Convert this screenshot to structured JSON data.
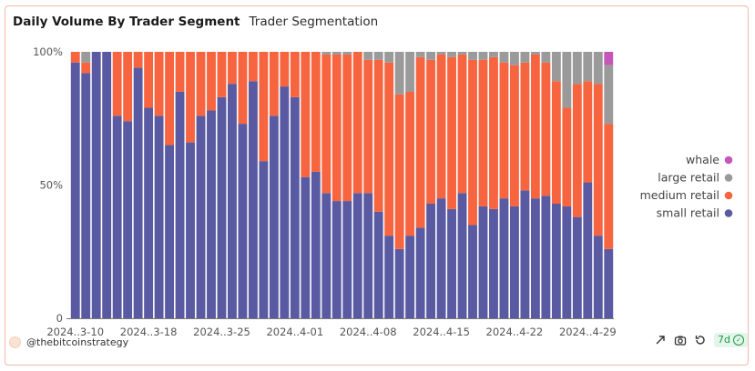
{
  "card": {
    "title": "Daily Volume By Trader Segment",
    "subtitle": "Trader Segmentation",
    "author": "@thebitcoinstrategy",
    "badge": "7d"
  },
  "icons": [
    "share-icon",
    "camera-icon",
    "refresh-icon",
    "check-circle-icon"
  ],
  "chart_data": {
    "type": "bar",
    "stacked": true,
    "normalized": true,
    "x_tick_labels": [
      "2024..3-10",
      "2024..3-18",
      "2024..3-25",
      "2024..4-01",
      "2024..4-08",
      "2024..4-15",
      "2024..4-22",
      "2024..4-29"
    ],
    "y_tick_labels": [
      "100%",
      "50%",
      "0"
    ],
    "ylim": [
      0,
      100
    ],
    "legend_position": "right",
    "series": [
      {
        "name": "small retail",
        "color": "#5a5aa2",
        "values": [
          96,
          92,
          100,
          100,
          76,
          74,
          94,
          79,
          76,
          65,
          85,
          66,
          76,
          78,
          83,
          88,
          73,
          89,
          59,
          76,
          87,
          83,
          53,
          55,
          47,
          44,
          44,
          47,
          47,
          40,
          31,
          26,
          31,
          34,
          43,
          45,
          41,
          47,
          35,
          42,
          41,
          45,
          42,
          48,
          45,
          46,
          43,
          42,
          38,
          51,
          31,
          26
        ]
      },
      {
        "name": "medium retail",
        "color": "#f66540",
        "values": [
          4,
          4,
          0,
          0,
          24,
          26,
          6,
          21,
          24,
          35,
          15,
          34,
          24,
          22,
          17,
          12,
          27,
          11,
          41,
          24,
          13,
          17,
          47,
          45,
          52,
          55,
          55,
          53,
          50,
          57,
          65,
          58,
          54,
          64,
          54,
          54,
          57,
          52,
          62,
          55,
          57,
          51,
          53,
          48,
          54,
          50,
          46,
          37,
          50,
          38,
          57,
          47
        ]
      },
      {
        "name": "large retail",
        "color": "#9a9a9a",
        "values": [
          0,
          4,
          0,
          0,
          0,
          0,
          0,
          0,
          0,
          0,
          0,
          0,
          0,
          0,
          0,
          0,
          0,
          0,
          0,
          0,
          0,
          0,
          0,
          0,
          1,
          1,
          1,
          0,
          3,
          3,
          4,
          16,
          15,
          2,
          3,
          1,
          2,
          1,
          3,
          3,
          2,
          4,
          5,
          4,
          1,
          4,
          11,
          21,
          12,
          11,
          12,
          22
        ]
      },
      {
        "name": "whale",
        "color": "#c457b8",
        "values": [
          0,
          0,
          0,
          0,
          0,
          0,
          0,
          0,
          0,
          0,
          0,
          0,
          0,
          0,
          0,
          0,
          0,
          0,
          0,
          0,
          0,
          0,
          0,
          0,
          0,
          0,
          0,
          0,
          0,
          0,
          0,
          0,
          0,
          0,
          0,
          0,
          0,
          0,
          0,
          0,
          0,
          0,
          0,
          0,
          0,
          0,
          0,
          0,
          0,
          0,
          0,
          5
        ]
      }
    ]
  }
}
